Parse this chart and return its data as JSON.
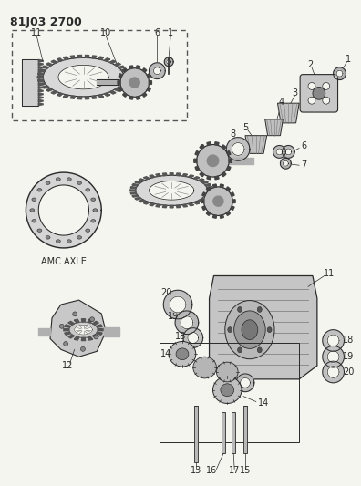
{
  "title": "81J03 2700",
  "bg": "#f5f5f0",
  "fg": "#2a2a2a",
  "lg": "#777777",
  "amc_label": "AMC AXLE",
  "fig_w": 3.96,
  "fig_h": 5.33,
  "dpi": 100
}
